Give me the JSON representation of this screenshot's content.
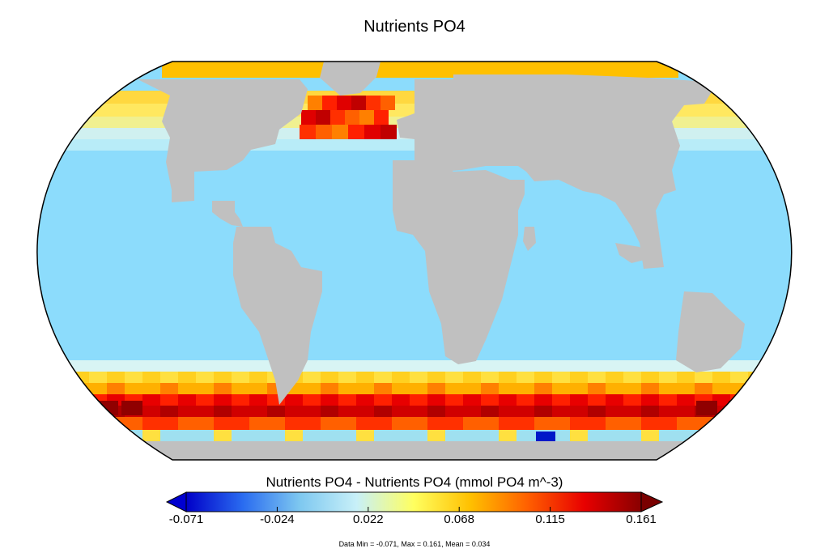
{
  "title": "Nutrients PO4",
  "colorbar": {
    "label": "Nutrients PO4 - Nutrients PO4 (mmol PO4 m^-3)",
    "ticks": [
      "-0.071",
      "-0.024",
      "0.022",
      "0.068",
      "0.115",
      "0.161"
    ],
    "min": -0.071,
    "max": 0.161,
    "stops": [
      "#0000c8",
      "#2a6cf0",
      "#7ec8f0",
      "#c8f0f8",
      "#ffff60",
      "#ffc000",
      "#ff6000",
      "#e80000",
      "#880000"
    ]
  },
  "stats_text": "Data Min = -0.071, Max = 0.161, Mean = 0.034",
  "colors": {
    "land": "#c0c0c0",
    "ocean_base": "#8cdcfc",
    "below_arrow": "#0000d0",
    "above_arrow": "#7a0000"
  },
  "projection": "Robinson"
}
